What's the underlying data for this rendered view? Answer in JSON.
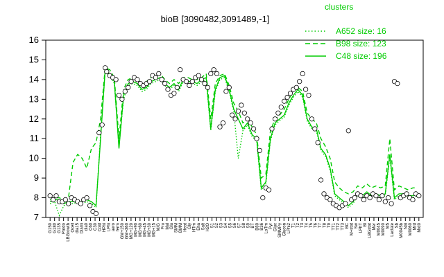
{
  "chart_data": {
    "type": "line",
    "title": "bioB [3090482,3091489,-1]",
    "ylim": [
      7,
      16
    ],
    "yticks": [
      7,
      8,
      9,
      10,
      11,
      12,
      13,
      14,
      15,
      16
    ],
    "xlabel": "",
    "ylabel": "",
    "grid": false,
    "legend": {
      "title": "clusters",
      "placement": "top-right",
      "entries": [
        {
          "label": "A652 size: 16",
          "style": "dotted"
        },
        {
          "label": "B98 size: 123",
          "style": "dashed"
        },
        {
          "label": "C48 size: 196",
          "style": "solid"
        }
      ]
    },
    "colors": {
      "series": "#00cc00",
      "points": "#000000"
    },
    "x_tick_labels": [
      "G150",
      "G180",
      "G135",
      "Pardo",
      "LBGrowth",
      "Oxell",
      "dia15",
      "Diami",
      "dia0",
      "C60",
      "C30",
      "Cold",
      "HPhi",
      "LPhi",
      "aero",
      "ferm",
      "GM+150",
      "GM+360",
      "MG+120",
      "MG+90",
      "MG+60",
      "MG+45",
      "MG+30",
      "MG+15",
      "M/G",
      "Fru",
      "Mal",
      "Glu",
      "SMM",
      "BMM",
      "Heat",
      "Gly",
      "HTm",
      "Eha",
      "Salt",
      "H2O",
      "S1",
      "S2",
      "S3",
      "S4",
      "S5",
      "S6",
      "S7",
      "S8",
      "S9",
      "BT",
      "B80",
      "B36",
      "LoTm",
      "Pyr",
      "Gluc",
      "SMMPy",
      "Glucon",
      "LPhi2",
      "T1",
      "T2",
      "T3",
      "T4",
      "T5",
      "T6",
      "T7",
      "T8",
      "T9",
      "TT1",
      "TT2",
      "TT3",
      "BC",
      "M+stat",
      "Sw",
      "LPhT",
      "BI",
      "LBGstat",
      "Mer",
      "M0045",
      "M0090",
      "M5",
      "Lactate",
      "Sb",
      "M0045b",
      "Nai",
      "M0060",
      "Mrd",
      "Mrd0"
    ],
    "series": [
      {
        "name": "C48",
        "style": "solid",
        "x": [
          1,
          4,
          7,
          10,
          13,
          16,
          19,
          22,
          25,
          28,
          31,
          34,
          37,
          40,
          43,
          46,
          49,
          52,
          55,
          58,
          61,
          64,
          67,
          70,
          73,
          76,
          79,
          82,
          85,
          88,
          91,
          94,
          97,
          100,
          103,
          106,
          109,
          112,
          115,
          118,
          121,
          124,
          127,
          130,
          133,
          136,
          139,
          142,
          145,
          148,
          151,
          154,
          157,
          160,
          163,
          166,
          169,
          172,
          175,
          178,
          181,
          184,
          187,
          190,
          193,
          196,
          199,
          202,
          205,
          208,
          211,
          214,
          217,
          220,
          223,
          226,
          229,
          232,
          235,
          238,
          241
        ],
        "y": [
          7.8,
          7.9,
          7.9,
          7.7,
          7.8,
          7.8,
          7.8,
          7.8,
          7.9,
          7.8,
          7.6,
          11.0,
          14.5,
          14.3,
          13.9,
          10.5,
          13.2,
          13.8,
          13.9,
          13.8,
          13.5,
          13.6,
          13.9,
          14.0,
          14.1,
          13.8,
          13.6,
          13.8,
          13.5,
          14.0,
          13.9,
          13.9,
          13.8,
          14.0,
          14.1,
          11.5,
          13.5,
          14.1,
          14.2,
          13.5,
          12.5,
          12.0,
          11.5,
          11.8,
          11.2,
          11.0,
          8.5,
          8.8,
          11.0,
          11.8,
          12.0,
          12.2,
          12.8,
          13.2,
          13.5,
          13.2,
          12.0,
          11.6,
          11.5,
          10.5,
          10.2,
          9.5,
          8.2,
          8.0,
          7.8,
          7.6,
          7.8,
          8.2,
          8.1,
          8.3,
          8.1,
          8.2,
          8.1,
          8.2,
          10.2,
          8.0,
          8.2,
          8.2,
          8.1,
          8.1,
          8.2
        ]
      },
      {
        "name": "B98",
        "style": "dashed",
        "x": [
          1,
          4,
          7,
          10,
          13,
          16,
          19,
          22,
          25,
          28,
          31,
          34,
          37,
          40,
          43,
          46,
          49,
          52,
          55,
          58,
          61,
          64,
          67,
          70,
          73,
          76,
          79,
          82,
          85,
          88,
          91,
          94,
          97,
          100,
          103,
          106,
          109,
          112,
          115,
          118,
          121,
          124,
          127,
          130,
          133,
          136,
          139,
          142,
          145,
          148,
          151,
          154,
          157,
          160,
          163,
          166,
          169,
          172,
          175,
          178,
          181,
          184,
          187,
          190,
          193,
          196,
          199,
          202,
          205,
          208,
          211,
          214,
          217,
          220,
          223,
          226,
          229,
          232,
          235,
          238,
          241
        ],
        "y": [
          7.9,
          8.0,
          8.0,
          7.9,
          8.0,
          9.8,
          10.2,
          10.0,
          9.5,
          10.5,
          10.8,
          12.0,
          14.6,
          14.5,
          14.1,
          11.0,
          13.5,
          14.0,
          14.1,
          14.0,
          13.8,
          13.9,
          14.1,
          14.2,
          14.3,
          14.0,
          13.8,
          14.0,
          13.8,
          14.1,
          14.1,
          14.0,
          14.0,
          14.1,
          14.3,
          12.0,
          13.8,
          14.2,
          14.3,
          13.7,
          12.8,
          12.4,
          11.8,
          12.0,
          11.6,
          11.2,
          9.0,
          9.2,
          11.4,
          12.0,
          12.2,
          12.5,
          13.0,
          13.4,
          13.6,
          13.4,
          12.3,
          12.0,
          11.8,
          11.0,
          10.6,
          10.0,
          8.8,
          8.5,
          8.3,
          8.2,
          8.3,
          8.6,
          8.5,
          8.7,
          8.5,
          8.6,
          8.5,
          8.6,
          11.0,
          8.4,
          8.6,
          8.5,
          8.4,
          8.5,
          8.5
        ]
      },
      {
        "name": "A652",
        "style": "dotted",
        "x": [
          1,
          4,
          7,
          10,
          13,
          16,
          19,
          22,
          25,
          28,
          31,
          34,
          37,
          40,
          43,
          46,
          49,
          52,
          55,
          58,
          61,
          64,
          67,
          70,
          73,
          76,
          79,
          82,
          85,
          88,
          91,
          94,
          97,
          100,
          103,
          106,
          109,
          112,
          115,
          118,
          121,
          124,
          127,
          130,
          133,
          136,
          139,
          142,
          145,
          148,
          151,
          154,
          157,
          160,
          163,
          166,
          169,
          172,
          175,
          178,
          181,
          184,
          187,
          190,
          193,
          196,
          199,
          202,
          205,
          208,
          211,
          214,
          217,
          220,
          223,
          226,
          229,
          232,
          235,
          238,
          241
        ],
        "y": [
          7.7,
          7.8,
          7.1,
          7.6,
          7.7,
          7.7,
          7.8,
          7.7,
          7.8,
          7.7,
          7.5,
          11.2,
          14.4,
          14.2,
          13.8,
          10.6,
          13.0,
          13.7,
          13.8,
          13.7,
          13.4,
          13.5,
          13.8,
          13.9,
          14.0,
          13.7,
          13.5,
          13.7,
          13.4,
          13.9,
          13.8,
          13.8,
          13.7,
          13.9,
          14.0,
          11.4,
          13.4,
          14.0,
          14.1,
          13.4,
          12.4,
          10.0,
          11.4,
          11.7,
          11.1,
          10.9,
          8.4,
          8.7,
          10.9,
          11.7,
          11.9,
          12.1,
          12.7,
          13.1,
          13.4,
          13.1,
          11.9,
          11.5,
          11.4,
          10.4,
          10.1,
          9.4,
          8.1,
          7.9,
          7.7,
          7.5,
          7.7,
          8.1,
          8.0,
          8.2,
          8.0,
          8.1,
          8.0,
          8.1,
          10.1,
          7.9,
          8.1,
          8.1,
          8.0,
          8.0,
          8.1
        ]
      }
    ],
    "points": {
      "x": [
        1,
        3,
        5,
        7,
        9,
        11,
        13,
        15,
        17,
        19,
        21,
        23,
        25,
        27,
        29,
        31,
        33,
        35,
        37,
        38,
        40,
        42,
        44,
        46,
        48,
        50,
        52,
        54,
        56,
        58,
        60,
        62,
        64,
        66,
        68,
        70,
        72,
        74,
        76,
        78,
        80,
        82,
        84,
        86,
        88,
        90,
        92,
        94,
        96,
        98,
        100,
        102,
        104,
        106,
        108,
        110,
        112,
        114,
        116,
        118,
        120,
        122,
        124,
        126,
        128,
        130,
        132,
        134,
        136,
        138,
        140,
        142,
        144,
        146,
        148,
        150,
        152,
        154,
        156,
        158,
        160,
        162,
        164,
        166,
        168,
        170,
        172,
        174,
        176,
        178,
        180,
        182,
        184,
        186,
        188,
        190,
        192,
        194,
        196,
        198,
        200,
        202,
        204,
        206,
        208,
        210,
        212,
        214,
        216,
        218,
        220,
        222,
        224,
        226,
        228,
        230,
        232,
        234,
        236,
        238,
        240,
        242
      ],
      "y": [
        8.1,
        7.9,
        8.1,
        7.8,
        7.8,
        7.9,
        7.7,
        8.0,
        7.9,
        7.8,
        7.7,
        7.9,
        8.0,
        7.6,
        7.3,
        7.2,
        11.3,
        11.7,
        14.6,
        14.4,
        14.2,
        14.1,
        14.0,
        13.2,
        13.0,
        13.4,
        13.6,
        13.9,
        14.1,
        14.0,
        13.8,
        13.7,
        13.8,
        13.9,
        14.2,
        14.1,
        14.3,
        14.0,
        13.8,
        13.5,
        13.2,
        13.3,
        13.6,
        14.5,
        14.0,
        13.9,
        13.7,
        13.9,
        14.1,
        14.2,
        14.0,
        13.8,
        13.6,
        14.3,
        14.5,
        14.3,
        11.6,
        11.8,
        13.4,
        13.6,
        12.2,
        12.0,
        12.4,
        12.7,
        12.3,
        12.0,
        11.8,
        11.5,
        11.0,
        10.4,
        8.0,
        8.5,
        8.4,
        11.5,
        12.0,
        12.3,
        12.6,
        12.9,
        13.1,
        13.3,
        13.5,
        13.6,
        13.9,
        14.3,
        13.5,
        13.2,
        12.0,
        11.5,
        10.8,
        8.9,
        8.2,
        8.0,
        7.9,
        7.7,
        7.6,
        7.5,
        7.6,
        7.7,
        11.4,
        7.9,
        8.0,
        8.2,
        8.1,
        7.9,
        8.1,
        8.0,
        8.2,
        8.1,
        7.9,
        8.1,
        7.8,
        8.0,
        7.7,
        13.9,
        13.8,
        8.0,
        8.1,
        8.2,
        8.0,
        7.9,
        8.2,
        8.1
      ]
    }
  }
}
